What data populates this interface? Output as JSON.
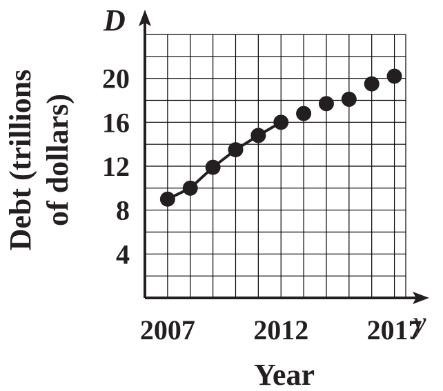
{
  "chart_data": {
    "type": "line",
    "title": "",
    "xlabel": "Year",
    "ylabel_lines": [
      "Debt (trillions",
      "of dollars)"
    ],
    "x_variable": "y",
    "y_variable": "D",
    "x": [
      2007,
      2008,
      2009,
      2010,
      2011,
      2012,
      2013,
      2014,
      2015,
      2016,
      2017
    ],
    "series": [
      {
        "values": [
          9.0,
          10.0,
          11.9,
          13.5,
          14.8,
          16.0,
          16.8,
          17.7,
          18.1,
          19.5,
          20.2
        ]
      }
    ],
    "connected_points": 6,
    "x_ticks": [
      2007,
      2012,
      2017
    ],
    "y_ticks": [
      4,
      8,
      12,
      16,
      20
    ],
    "xlim": [
      2006,
      2017.5
    ],
    "ylim": [
      0,
      24
    ],
    "grid": true,
    "colors": {
      "ink": "#231f20",
      "grid": "#000000",
      "background": "#ffffff"
    }
  }
}
